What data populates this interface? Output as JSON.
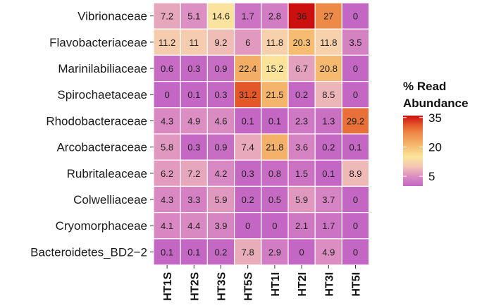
{
  "chart_data": {
    "type": "heatmap",
    "rows": [
      "Vibrionaceae",
      "Flavobacteriaceae",
      "Marinilabiliaceae",
      "Spirochaetaceae",
      "Rhodobacteraceae",
      "Arcobacteraceae",
      "Rubritaleaceae",
      "Colwelliaceae",
      "Cryomorphaceae",
      "Bacteroidetes_BD2−2"
    ],
    "columns": [
      "HT1S",
      "HT2S",
      "HT3S",
      "HT5S",
      "HT1I",
      "HT2I",
      "HT3I",
      "HT5I"
    ],
    "values": [
      [
        7.2,
        5.1,
        14.6,
        1.7,
        2.8,
        36,
        27,
        0
      ],
      [
        11.2,
        11,
        9.2,
        6,
        11.8,
        20.3,
        11.8,
        3.5
      ],
      [
        0.6,
        0.3,
        0.9,
        22.4,
        15.2,
        6.7,
        20.8,
        0
      ],
      [
        0,
        0.1,
        0.3,
        31.2,
        21.5,
        0.2,
        8.5,
        0
      ],
      [
        4.3,
        4.9,
        4.6,
        0.1,
        0.1,
        2.3,
        1.3,
        29.2
      ],
      [
        5.8,
        0.3,
        0.9,
        7.4,
        21.8,
        3.6,
        0.2,
        0.1
      ],
      [
        6.2,
        7.2,
        4.2,
        0.3,
        0.8,
        1.5,
        0.1,
        8.9
      ],
      [
        4.3,
        3.3,
        5.9,
        0.2,
        0.5,
        5.9,
        3.7,
        0
      ],
      [
        4.1,
        4.4,
        3.9,
        0,
        0,
        2.1,
        1.7,
        0
      ],
      [
        0.1,
        0.1,
        0.2,
        7.8,
        2.9,
        0,
        4.9,
        0
      ]
    ],
    "legend": {
      "title_lines": [
        "% Read",
        "Abundance"
      ],
      "ticks": [
        35,
        20,
        5
      ],
      "range": [
        0,
        36
      ],
      "position": "right"
    },
    "color_stops": [
      {
        "value": 0,
        "color": "#c466c4"
      },
      {
        "value": 5,
        "color": "#dc8ec2"
      },
      {
        "value": 10,
        "color": "#f3c6b4"
      },
      {
        "value": 15,
        "color": "#fbe59c"
      },
      {
        "value": 20,
        "color": "#f6bf74"
      },
      {
        "value": 27,
        "color": "#ee8a48"
      },
      {
        "value": 31,
        "color": "#e45a2a"
      },
      {
        "value": 36,
        "color": "#cc1010"
      }
    ],
    "grid_color": "#ffffff"
  }
}
